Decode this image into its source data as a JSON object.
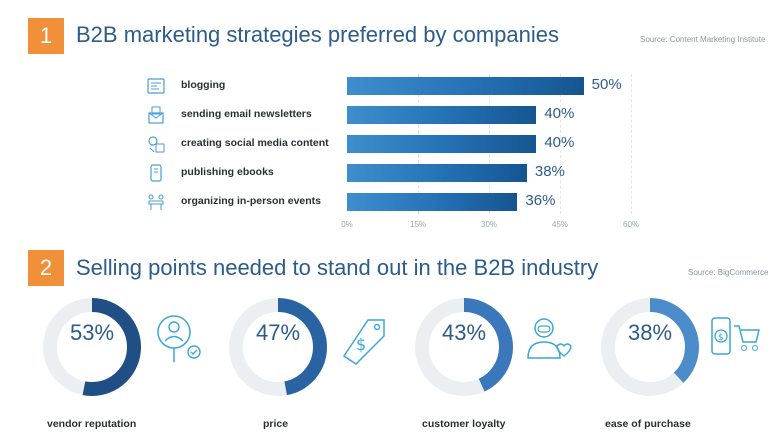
{
  "section1": {
    "number": "1",
    "title": "B2B marketing strategies preferred by companies",
    "source": "Source: Content Marketing Institute"
  },
  "section2": {
    "number": "2",
    "title": "Selling points needed to stand out in the B2B industry",
    "source": "Source: BigCommerce"
  },
  "colors": {
    "accent_orange": "#f0913a",
    "title_blue": "#2b5c8a",
    "bar_blue": "#2470b4",
    "ring_track": "#eceff2"
  },
  "chart_data": [
    {
      "type": "bar",
      "orientation": "horizontal",
      "title": "B2B marketing strategies preferred by companies",
      "categories": [
        "blogging",
        "sending email newsletters",
        "creating social media content",
        "publishing ebooks",
        "organizing in-person events"
      ],
      "values": [
        50,
        40,
        40,
        38,
        36
      ],
      "value_labels": [
        "50%",
        "40%",
        "40%",
        "38%",
        "36%"
      ],
      "icons": [
        "blog-icon",
        "newsletter-icon",
        "social-media-icon",
        "ebook-icon",
        "event-icon"
      ],
      "xlim": [
        0,
        60
      ],
      "xticks": [
        "0%",
        "15%",
        "30%",
        "45%",
        "60%"
      ],
      "grid": true
    },
    {
      "type": "pie",
      "style": "donut",
      "title": "Selling points needed to stand out in the B2B industry",
      "categories": [
        "vendor reputation",
        "price",
        "customer loyalty",
        "ease of purchase"
      ],
      "values": [
        53,
        47,
        43,
        38
      ],
      "value_labels": [
        "53%",
        "47%",
        "43%",
        "38%"
      ],
      "icons": [
        "vendor-reputation-icon",
        "price-tag-icon",
        "customer-loyalty-icon",
        "shopping-cart-icon"
      ],
      "colors": [
        "#1f4f85",
        "#2a63a1",
        "#3a78bb",
        "#4d8ccb"
      ]
    }
  ]
}
